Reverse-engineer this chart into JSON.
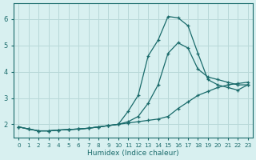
{
  "bg_color": "#d8f0f0",
  "grid_color": "#b8d8d8",
  "line_color": "#1a6b6b",
  "xlabel": "Humidex (Indice chaleur)",
  "ylim": [
    1.5,
    6.6
  ],
  "xlim": [
    -0.5,
    23.5
  ],
  "yticks": [
    2,
    3,
    4,
    5,
    6
  ],
  "xticks": [
    0,
    1,
    2,
    3,
    4,
    5,
    6,
    7,
    8,
    9,
    10,
    11,
    12,
    13,
    14,
    15,
    16,
    17,
    18,
    19,
    20,
    21,
    22,
    23
  ],
  "series1_x": [
    0,
    1,
    2,
    3,
    4,
    5,
    6,
    7,
    8,
    9,
    10,
    11,
    12,
    13,
    14,
    15,
    16,
    17,
    18,
    19,
    20,
    21,
    22,
    23
  ],
  "series1_y": [
    1.9,
    1.82,
    1.75,
    1.75,
    1.78,
    1.8,
    1.82,
    1.85,
    1.9,
    1.95,
    2.0,
    2.5,
    3.1,
    4.6,
    5.2,
    6.1,
    6.05,
    5.75,
    4.7,
    3.7,
    3.5,
    3.4,
    3.3,
    3.5
  ],
  "series2_x": [
    0,
    1,
    2,
    3,
    4,
    5,
    6,
    7,
    8,
    9,
    10,
    11,
    12,
    13,
    14,
    15,
    16,
    17,
    18,
    19,
    20,
    21,
    22,
    23
  ],
  "series2_y": [
    1.9,
    1.82,
    1.75,
    1.75,
    1.78,
    1.8,
    1.82,
    1.85,
    1.9,
    1.95,
    2.0,
    2.1,
    2.3,
    2.8,
    3.5,
    4.7,
    5.1,
    4.9,
    4.1,
    3.8,
    3.7,
    3.6,
    3.5,
    3.5
  ],
  "series3_x": [
    0,
    1,
    2,
    3,
    4,
    5,
    6,
    7,
    8,
    9,
    10,
    11,
    12,
    13,
    14,
    15,
    16,
    17,
    18,
    19,
    20,
    21,
    22,
    23
  ],
  "series3_y": [
    1.9,
    1.82,
    1.75,
    1.75,
    1.78,
    1.8,
    1.82,
    1.85,
    1.9,
    1.95,
    2.0,
    2.05,
    2.1,
    2.15,
    2.2,
    2.3,
    2.6,
    2.85,
    3.1,
    3.25,
    3.4,
    3.5,
    3.55,
    3.6
  ]
}
